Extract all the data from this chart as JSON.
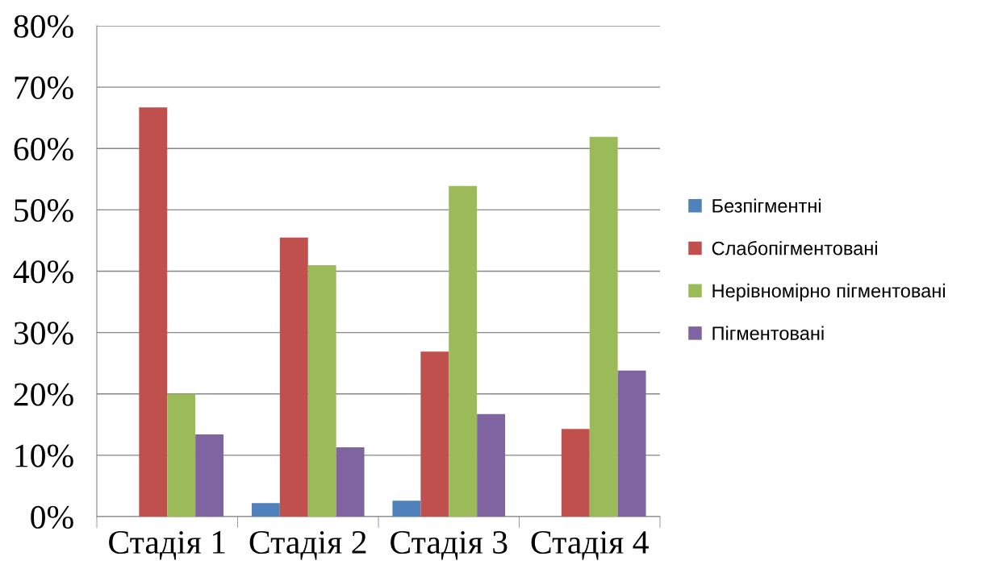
{
  "chart_data": {
    "type": "bar",
    "categories": [
      "Стадія 1",
      "Стадія 2",
      "Стадія 3",
      "Стадія 4"
    ],
    "series": [
      {
        "name": "Безпігментні",
        "color": "#4f81bd",
        "values": [
          0,
          2.2,
          2.6,
          0
        ]
      },
      {
        "name": "Слабопігментовані",
        "color": "#c0504d",
        "values": [
          66.7,
          45.5,
          26.9,
          14.3
        ]
      },
      {
        "name": "Нерівномірно пігментовані",
        "color": "#9bbb59",
        "values": [
          20.0,
          41.0,
          53.9,
          61.9
        ]
      },
      {
        "name": "Пігментовані",
        "color": "#8064a2",
        "values": [
          13.4,
          11.3,
          16.7,
          23.8
        ]
      }
    ],
    "ylim": [
      0,
      80
    ],
    "yticks": [
      {
        "value": 0,
        "label": "0%"
      },
      {
        "value": 10,
        "label": "10%"
      },
      {
        "value": 20,
        "label": "20%"
      },
      {
        "value": 30,
        "label": "30%"
      },
      {
        "value": 40,
        "label": "40%"
      },
      {
        "value": 50,
        "label": "50%"
      },
      {
        "value": 60,
        "label": "60%"
      },
      {
        "value": 70,
        "label": "70%"
      },
      {
        "value": 80,
        "label": "80%"
      }
    ],
    "grid": "y",
    "legend": "right"
  }
}
